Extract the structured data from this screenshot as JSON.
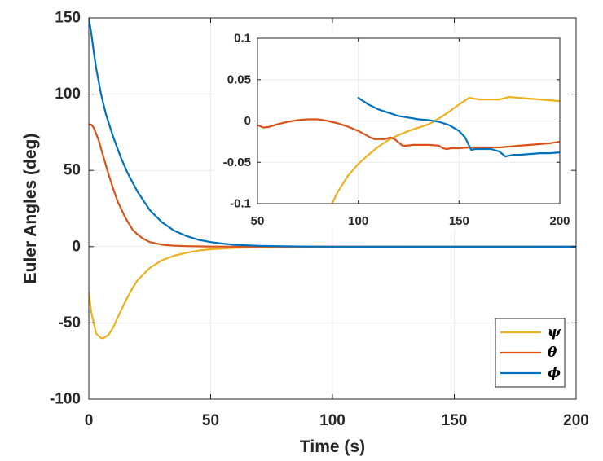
{
  "chart_data": [
    {
      "type": "line",
      "xlabel": "Time (s)",
      "ylabel": "Euler Angles (deg)",
      "xlim": [
        0,
        200
      ],
      "ylim": [
        -100,
        150
      ],
      "xticks": [
        0,
        50,
        100,
        150,
        200
      ],
      "yticks": [
        -100,
        -50,
        0,
        50,
        100,
        150
      ],
      "xtick_labels": [
        "0",
        "50",
        "100",
        "150",
        "200"
      ],
      "ytick_labels": [
        "-100",
        "-50",
        "0",
        "50",
        "100",
        "150"
      ],
      "grid": true,
      "legend": {
        "placement": "bottom-right",
        "entries": [
          "ψ",
          "θ",
          "ϕ"
        ]
      },
      "series": [
        {
          "name": "ψ",
          "color": "#EDB120",
          "x": [
            0,
            1,
            3,
            5,
            6,
            8,
            10,
            12,
            15,
            18,
            20,
            25,
            30,
            35,
            40,
            45,
            50,
            60,
            70,
            80,
            90,
            100,
            120,
            150,
            200
          ],
          "y": [
            -30,
            -43,
            -57,
            -60,
            -60,
            -58,
            -53,
            -46,
            -36,
            -27,
            -22,
            -14,
            -9,
            -6,
            -4,
            -2.6,
            -1.7,
            -0.8,
            -0.35,
            -0.15,
            -0.05,
            0,
            0,
            0.03,
            0.02
          ]
        },
        {
          "name": "θ",
          "color": "#D95319",
          "x": [
            0,
            1,
            2,
            4,
            6,
            8,
            10,
            12,
            15,
            18,
            20,
            22,
            25,
            30,
            35,
            40,
            50,
            60,
            80,
            100,
            150,
            200
          ],
          "y": [
            80,
            80,
            78,
            70,
            59,
            48,
            38,
            29,
            19,
            11,
            8,
            5.5,
            3,
            1.3,
            0.6,
            0.3,
            0.08,
            0.02,
            0,
            0,
            -0.03,
            -0.03
          ]
        },
        {
          "name": "ϕ",
          "color": "#0072BD",
          "x": [
            0,
            1,
            2,
            3,
            5,
            7,
            10,
            13,
            16,
            20,
            25,
            30,
            35,
            40,
            45,
            50,
            55,
            60,
            70,
            80,
            90,
            100,
            150,
            200
          ],
          "y": [
            150,
            140,
            128,
            117,
            100,
            87,
            72,
            59,
            48,
            36,
            24,
            16,
            10.5,
            7,
            4.5,
            3,
            2,
            1.2,
            0.5,
            0.2,
            0.08,
            0.01,
            -0.03,
            -0.04
          ]
        }
      ]
    },
    {
      "type": "line",
      "xlabel": "",
      "ylabel": "",
      "xlim": [
        50,
        200
      ],
      "ylim": [
        -0.1,
        0.1
      ],
      "xticks": [
        50,
        100,
        150,
        200
      ],
      "yticks": [
        -0.1,
        -0.05,
        0,
        0.05,
        0.1
      ],
      "xtick_labels": [
        "50",
        "100",
        "150",
        "200"
      ],
      "ytick_labels": [
        "-0.1",
        "-0.05",
        "0",
        "0.05",
        "0.1"
      ],
      "grid": true,
      "series": [
        {
          "color": "#EDB120",
          "x": [
            87,
            90,
            95,
            100,
            105,
            110,
            115,
            120,
            125,
            130,
            135,
            140,
            145,
            150,
            155,
            160,
            165,
            170,
            175,
            180,
            185,
            190,
            195,
            200
          ],
          "y": [
            -0.1,
            -0.085,
            -0.066,
            -0.052,
            -0.041,
            -0.031,
            -0.023,
            -0.017,
            -0.012,
            -0.008,
            -0.004,
            0.003,
            0.011,
            0.02,
            0.028,
            0.026,
            0.026,
            0.026,
            0.029,
            0.028,
            0.027,
            0.026,
            0.025,
            0.024
          ]
        },
        {
          "color": "#D95319",
          "x": [
            50,
            53,
            56,
            60,
            65,
            70,
            75,
            80,
            85,
            90,
            95,
            100,
            103,
            106,
            108,
            110,
            113,
            116,
            118,
            120,
            122,
            124,
            127,
            130,
            135,
            140,
            142,
            144,
            146,
            150,
            155,
            160,
            165,
            170,
            175,
            180,
            185,
            190,
            195,
            200
          ],
          "y": [
            -0.005,
            -0.008,
            -0.007,
            -0.004,
            -0.001,
            0.001,
            0.002,
            0.002,
            0,
            -0.003,
            -0.007,
            -0.012,
            -0.016,
            -0.02,
            -0.022,
            -0.022,
            -0.022,
            -0.02,
            -0.022,
            -0.026,
            -0.03,
            -0.03,
            -0.029,
            -0.029,
            -0.029,
            -0.03,
            -0.033,
            -0.034,
            -0.033,
            -0.033,
            -0.032,
            -0.032,
            -0.032,
            -0.032,
            -0.031,
            -0.03,
            -0.029,
            -0.028,
            -0.027,
            -0.025
          ]
        },
        {
          "color": "#0072BD",
          "x": [
            100,
            105,
            110,
            115,
            120,
            125,
            130,
            135,
            140,
            145,
            150,
            153,
            156,
            158,
            160,
            163,
            166,
            170,
            173,
            175,
            177,
            180,
            185,
            190,
            195,
            200
          ],
          "y": [
            0.028,
            0.02,
            0.014,
            0.01,
            0.006,
            0.004,
            0.002,
            0.001,
            -0.001,
            -0.005,
            -0.012,
            -0.02,
            -0.035,
            -0.034,
            -0.034,
            -0.034,
            -0.034,
            -0.037,
            -0.043,
            -0.042,
            -0.041,
            -0.041,
            -0.04,
            -0.039,
            -0.039,
            -0.038
          ]
        }
      ]
    }
  ]
}
